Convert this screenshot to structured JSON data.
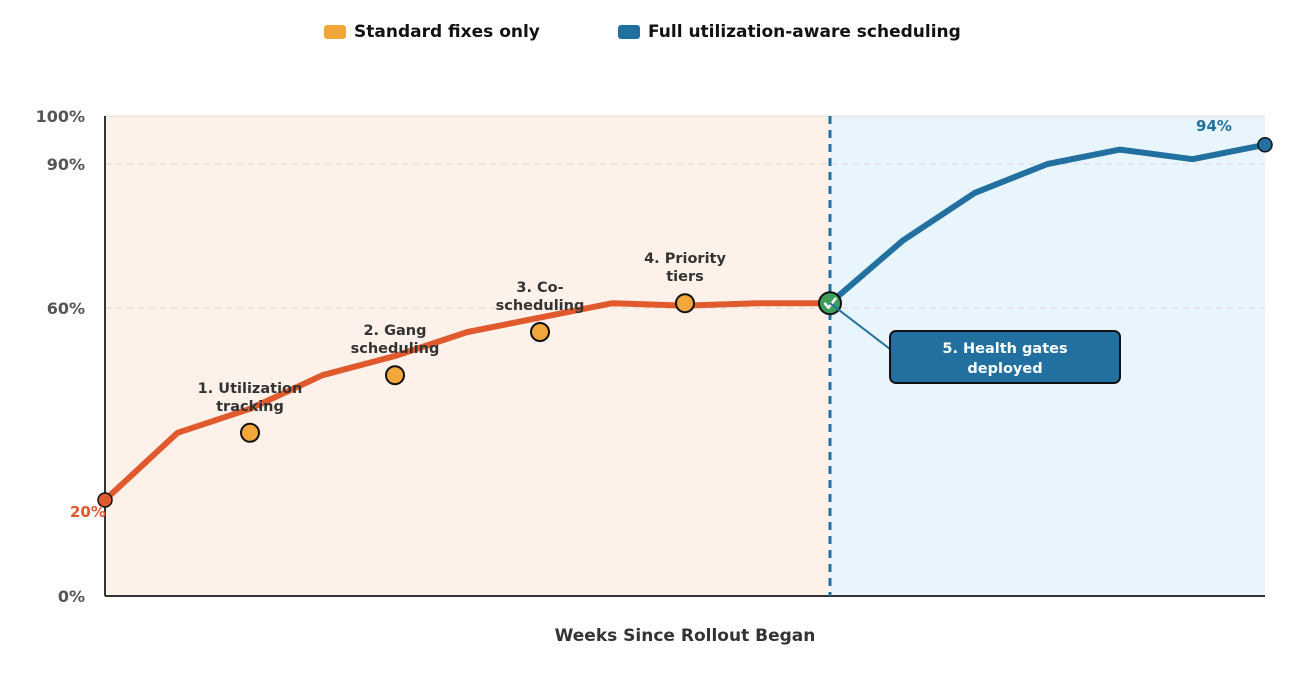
{
  "legend": [
    {
      "label": "Standard fixes only",
      "color": "#f2a73b"
    },
    {
      "label": "Full utilization-aware scheduling",
      "color": "#21709f"
    }
  ],
  "chart_data": {
    "type": "line",
    "title": "",
    "xlabel": "Weeks Since Rollout Began",
    "ylabel": "",
    "xlim": [
      0,
      16
    ],
    "ylim": [
      0,
      100
    ],
    "y_ticks": [
      {
        "value": 0,
        "label": "0%"
      },
      {
        "value": 60,
        "label": "60%"
      },
      {
        "value": 90,
        "label": "90%"
      },
      {
        "value": 100,
        "label": "100%"
      }
    ],
    "grid": {
      "y_values": [
        60,
        90
      ],
      "style": "dashed"
    },
    "phase_boundary_x": 10,
    "phase_colors": {
      "before": "#fdf1e9",
      "after": "#e9f5fc"
    },
    "series": [
      {
        "name": "Standard fixes only",
        "color": "#e05a2e",
        "x": [
          0,
          1,
          2,
          3,
          4,
          5,
          6,
          7,
          8,
          9,
          10
        ],
        "y": [
          20,
          34,
          39,
          46,
          50,
          55,
          58,
          61,
          60.5,
          61,
          61
        ]
      },
      {
        "name": "Full utilization-aware scheduling",
        "color": "#21709f",
        "x": [
          10,
          11,
          12,
          13,
          14,
          15,
          16
        ],
        "y": [
          61,
          74,
          84,
          90,
          93,
          91,
          94
        ]
      }
    ],
    "milestones": [
      {
        "x": 2,
        "y": 34,
        "label_lines": [
          "1. Utilization",
          "tracking"
        ]
      },
      {
        "x": 4,
        "y": 46,
        "label_lines": [
          "2. Gang",
          "scheduling"
        ]
      },
      {
        "x": 6,
        "y": 55,
        "label_lines": [
          "3. Co-",
          "scheduling"
        ]
      },
      {
        "x": 8,
        "y": 61,
        "label_lines": [
          "4. Priority",
          "tiers"
        ]
      }
    ],
    "callout": {
      "x": 10,
      "y": 61,
      "label_lines": [
        "5. Health gates",
        "deployed"
      ],
      "color": "#21709f",
      "marker_color": "#3d9e5c"
    },
    "start_label": {
      "x": 0,
      "y": 20,
      "text": "20%",
      "color": "#e05a2e"
    },
    "end_label": {
      "x": 16,
      "y": 94,
      "text": "94%",
      "color": "#21709f"
    }
  }
}
